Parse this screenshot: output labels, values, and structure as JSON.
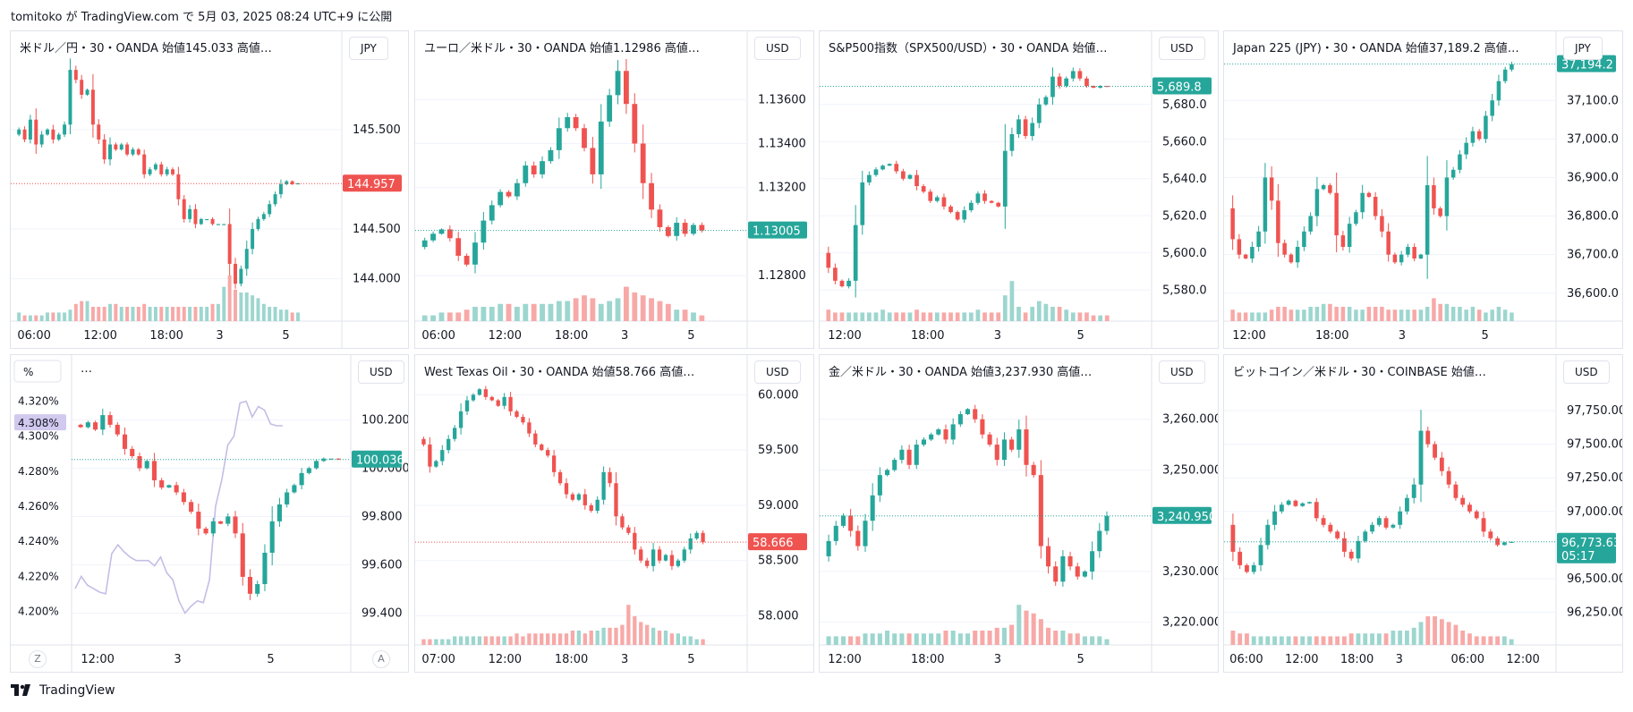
{
  "header": {
    "attribution": "tomitoko が TradingView.com で 5月 03, 2025 08:24 UTC+9 に公開"
  },
  "footer": {
    "brand": "TradingView"
  },
  "colors": {
    "up": "#26a69a",
    "down": "#ef5350",
    "up_vol": "#9cd6cf",
    "down_vol": "#f7a9a7",
    "grid": "#f0f3fa",
    "axis_text": "#131722",
    "secondary_line": "#c4bde6"
  },
  "panels": [
    {
      "id": "usdjpy",
      "title": "米ドル／円・30・OANDA 始値145.033 高値…",
      "title_value_color": "#ef5350",
      "currency": "JPY",
      "y_ticks": [
        "145.500",
        "144.500",
        "144.000"
      ],
      "x_ticks": [
        "06:00",
        "12:00",
        "18:00",
        "3",
        "5"
      ],
      "last_price": "144.957",
      "last_color": "#ef5350"
    },
    {
      "id": "eurusd",
      "title": "ユーロ／米ドル・30・OANDA 始値1.12986 高値…",
      "title_value_color": "#26a69a",
      "currency": "USD",
      "y_ticks": [
        "1.13600",
        "1.13400",
        "1.13200",
        "1.12800"
      ],
      "x_ticks": [
        "06:00",
        "12:00",
        "18:00",
        "3",
        "5"
      ],
      "last_price": "1.13005",
      "last_color": "#26a69a"
    },
    {
      "id": "spx",
      "title": "S&P500指数（SPX500/USD）・30・OANDA 始値…",
      "title_value_color": "#26a69a",
      "currency": "USD",
      "y_ticks": [
        "5,680.0",
        "5,660.0",
        "5,640.0",
        "5,620.0",
        "5,600.0",
        "5,580.0"
      ],
      "x_ticks": [
        "12:00",
        "18:00",
        "3",
        "5"
      ],
      "last_price": "5,689.8",
      "last_color": "#26a69a"
    },
    {
      "id": "jp225",
      "title": "Japan 225 (JPY)・30・OANDA 始値37,189.2 高値…",
      "title_value_color": "#26a69a",
      "currency": "JPY",
      "y_ticks": [
        "37,100.0",
        "37,000.0",
        "36,900.0",
        "36,800.0",
        "36,700.0",
        "36,600.0"
      ],
      "x_ticks": [
        "12:00",
        "18:00",
        "3",
        "5"
      ],
      "last_price": "37,194.2",
      "last_color": "#26a69a"
    },
    {
      "id": "dxy",
      "title": "…",
      "title_value_color": "#131722",
      "currency": "USD",
      "left_unit": "%",
      "y_ticks": [
        "100.200",
        "100.000",
        "99.800",
        "99.600",
        "99.400"
      ],
      "left_ticks": [
        "4.320%",
        "4.300%",
        "4.280%",
        "4.260%",
        "4.240%",
        "4.220%",
        "4.200%"
      ],
      "left_last": "4.308%",
      "x_ticks": [
        "12:00",
        "3",
        "5"
      ],
      "last_price": "100.036",
      "last_color": "#26a69a",
      "corner_left": "Z",
      "corner_right": "A"
    },
    {
      "id": "wti",
      "title": "West Texas Oil・30・OANDA 始値58.766 高値…",
      "title_value_color": "#ef5350",
      "currency": "USD",
      "y_ticks": [
        "60.000",
        "59.500",
        "59.000",
        "58.500",
        "58.000"
      ],
      "x_ticks": [
        "07:00",
        "12:00",
        "18:00",
        "3",
        "5"
      ],
      "last_price": "58.666",
      "last_color": "#ef5350"
    },
    {
      "id": "xauusd",
      "title": "金／米ドル・30・OANDA 始値3,237.930 高値…",
      "title_value_color": "#26a69a",
      "currency": "USD",
      "y_ticks": [
        "3,260.000",
        "3,250.000",
        "3,230.000",
        "3,220.000"
      ],
      "x_ticks": [
        "12:00",
        "18:00",
        "3",
        "5"
      ],
      "last_price": "3,240.950",
      "last_color": "#26a69a"
    },
    {
      "id": "btcusd",
      "title": "ビットコイン／米ドル・30・COINBASE 始値…",
      "title_value_color": "#131722",
      "currency": "USD",
      "y_ticks": [
        "97,750.00",
        "97,500.00",
        "97,250.00",
        "97,000.00",
        "96,500.00",
        "96,250.00"
      ],
      "x_ticks": [
        "06:00",
        "12:00",
        "18:00",
        "3",
        "06:00",
        "12:00"
      ],
      "last_price": "96,773.63",
      "last_sub": "05:17",
      "last_color": "#26a69a"
    }
  ],
  "chart_data": [
    {
      "type": "candlestick",
      "symbol": "USDJPY",
      "open": 145.033,
      "last": 144.957,
      "ylim": [
        143.7,
        146.2
      ],
      "path": [
        145.45,
        145.5,
        145.4,
        145.6,
        145.35,
        145.45,
        145.5,
        145.4,
        145.45,
        145.55,
        146.1,
        146.0,
        145.85,
        145.9,
        145.55,
        145.4,
        145.2,
        145.35,
        145.3,
        145.35,
        145.25,
        145.3,
        145.25,
        145.05,
        145.1,
        145.15,
        145.05,
        145.1,
        145.05,
        144.8,
        144.6,
        144.7,
        144.55,
        144.6,
        144.6,
        144.55,
        144.55,
        144.55,
        144.15,
        143.95,
        144.1,
        144.3,
        144.5,
        144.6,
        144.65,
        144.75,
        144.85,
        144.95,
        144.98,
        144.95,
        144.96
      ],
      "volume": [
        3,
        2,
        2,
        2,
        2,
        3,
        3,
        3,
        3,
        4,
        6,
        7,
        7,
        5,
        5,
        5,
        6,
        6,
        5,
        5,
        5,
        5,
        6,
        5,
        5,
        5,
        5,
        5,
        5,
        5,
        5,
        5,
        5,
        5,
        6,
        6,
        12,
        16,
        11,
        10,
        10,
        9,
        8,
        6,
        5,
        5,
        4,
        4,
        3,
        3,
        2
      ]
    },
    {
      "type": "candlestick",
      "symbol": "EURUSD",
      "open": 1.12986,
      "last": 1.13005,
      "ylim": [
        1.1265,
        1.1378
      ],
      "path": [
        1.1293,
        1.1296,
        1.1299,
        1.1301,
        1.1297,
        1.1289,
        1.1285,
        1.1295,
        1.1305,
        1.1312,
        1.1318,
        1.1316,
        1.1322,
        1.133,
        1.1326,
        1.1332,
        1.1337,
        1.1347,
        1.1352,
        1.1347,
        1.1338,
        1.1326,
        1.135,
        1.1362,
        1.1373,
        1.1358,
        1.134,
        1.1322,
        1.131,
        1.1302,
        1.1298,
        1.1304,
        1.1299,
        1.1303,
        1.13005
      ],
      "volume": [
        2,
        2,
        3,
        3,
        3,
        4,
        5,
        5,
        5,
        6,
        6,
        5,
        6,
        6,
        6,
        6,
        7,
        7,
        8,
        9,
        8,
        6,
        7,
        8,
        12,
        10,
        9,
        8,
        7,
        6,
        4,
        4,
        3,
        2,
        2
      ]
    },
    {
      "type": "candlestick",
      "symbol": "SPX500USD",
      "last": 5689.8,
      "ylim": [
        5570,
        5704
      ],
      "path": [
        5600,
        5592,
        5585,
        5582,
        5585,
        5615,
        5638,
        5642,
        5645,
        5647,
        5648,
        5644,
        5640,
        5642,
        5636,
        5633,
        5628,
        5630,
        5625,
        5622,
        5618,
        5623,
        5627,
        5632,
        5628,
        5627,
        5625,
        5655,
        5664,
        5672,
        5663,
        5670,
        5680,
        5684,
        5695,
        5690,
        5694,
        5698,
        5694,
        5690,
        5689,
        5690,
        5689.8
      ],
      "volume": [
        4,
        3,
        3,
        3,
        3,
        3,
        3,
        3,
        4,
        3,
        3,
        3,
        3,
        4,
        3,
        3,
        3,
        3,
        3,
        3,
        3,
        3,
        4,
        3,
        3,
        3,
        9,
        14,
        5,
        3,
        5,
        7,
        6,
        5,
        5,
        4,
        3,
        3,
        3,
        2,
        2,
        2,
        2
      ]
    },
    {
      "type": "candlestick",
      "symbol": "JP225",
      "open": 37189.2,
      "last": 37194.2,
      "ylim": [
        36560,
        37205
      ],
      "path": [
        36820,
        36740,
        36700,
        36690,
        36720,
        36760,
        36900,
        36840,
        36730,
        36700,
        36680,
        36720,
        36760,
        36800,
        36870,
        36880,
        36860,
        36750,
        36720,
        36780,
        36810,
        36860,
        36850,
        36800,
        36760,
        36700,
        36680,
        36700,
        36720,
        36690,
        36700,
        36880,
        36820,
        36800,
        36900,
        36920,
        36960,
        36990,
        37020,
        37000,
        37060,
        37100,
        37150,
        37180,
        37194
      ],
      "volume": [
        4,
        3,
        3,
        3,
        3,
        3,
        4,
        5,
        5,
        4,
        4,
        4,
        5,
        5,
        6,
        6,
        5,
        5,
        5,
        4,
        4,
        5,
        5,
        5,
        4,
        4,
        4,
        4,
        4,
        4,
        5,
        8,
        6,
        6,
        5,
        5,
        4,
        5,
        4,
        3,
        4,
        5,
        4,
        3,
        3
      ]
    },
    {
      "type": "candlestick",
      "symbol": "DXY",
      "last": 100.036,
      "ylim": [
        99.32,
        100.35
      ],
      "secondary_series": {
        "name": "",
        "unit": "%",
        "ylim": [
          4.188,
          4.33
        ],
        "values": [
          4.213,
          4.22,
          4.215,
          4.213,
          4.211,
          4.21,
          4.233,
          4.238,
          4.234,
          4.231,
          4.229,
          4.229,
          4.229,
          4.226,
          4.231,
          4.222,
          4.218,
          4.206,
          4.199,
          4.203,
          4.206,
          4.205,
          4.218,
          4.26,
          4.275,
          4.295,
          4.3,
          4.319,
          4.32,
          4.311,
          4.317,
          4.315,
          4.307,
          4.306,
          4.306
        ],
        "last": 4.308
      },
      "path": [
        100.18,
        100.17,
        100.19,
        100.16,
        100.22,
        100.18,
        100.14,
        100.08,
        100.05,
        100.0,
        100.03,
        99.95,
        99.92,
        99.93,
        99.9,
        99.86,
        99.82,
        99.75,
        99.73,
        99.78,
        99.77,
        99.8,
        99.73,
        99.55,
        99.48,
        99.52,
        99.65,
        99.78,
        99.85,
        99.9,
        99.93,
        99.98,
        100.0,
        100.03,
        100.04,
        100.04,
        100.036
      ]
    },
    {
      "type": "candlestick",
      "symbol": "WTIUSD",
      "open": 58.766,
      "last": 58.666,
      "ylim": [
        57.85,
        60.1
      ],
      "path": [
        59.6,
        59.55,
        59.35,
        59.4,
        59.5,
        59.6,
        59.7,
        59.85,
        59.95,
        60.0,
        60.05,
        59.98,
        59.95,
        59.9,
        59.98,
        59.85,
        59.8,
        59.75,
        59.65,
        59.55,
        59.5,
        59.45,
        59.3,
        59.2,
        59.1,
        59.05,
        59.1,
        59.0,
        58.95,
        59.05,
        59.3,
        59.2,
        58.9,
        58.8,
        58.75,
        58.6,
        58.5,
        58.45,
        58.6,
        58.5,
        58.55,
        58.45,
        58.5,
        58.6,
        58.7,
        58.75,
        58.666
      ],
      "volume": [
        2,
        2,
        2,
        2,
        2,
        3,
        3,
        3,
        3,
        3,
        3,
        3,
        3,
        3,
        3,
        4,
        3,
        4,
        4,
        4,
        4,
        4,
        4,
        4,
        5,
        5,
        4,
        5,
        5,
        6,
        6,
        6,
        7,
        14,
        10,
        8,
        7,
        6,
        5,
        5,
        4,
        4,
        3,
        3,
        2,
        2,
        2
      ]
    },
    {
      "type": "candlestick",
      "symbol": "XAUUSD",
      "open": 3237.93,
      "last": 3240.95,
      "ylim": [
        3218,
        3267
      ],
      "path": [
        3233,
        3236,
        3239,
        3241,
        3238,
        3235,
        3240,
        3245,
        3249,
        3250,
        3252,
        3254,
        3251,
        3255,
        3256,
        3257,
        3258,
        3256,
        3259,
        3261,
        3262,
        3260,
        3257,
        3255,
        3252,
        3256,
        3254,
        3258,
        3251,
        3249,
        3235,
        3231,
        3228,
        3233,
        3231,
        3229,
        3230,
        3234,
        3238,
        3240.95
      ],
      "volume": [
        3,
        3,
        3,
        3,
        3,
        4,
        4,
        4,
        5,
        4,
        4,
        4,
        4,
        4,
        4,
        4,
        5,
        5,
        4,
        4,
        5,
        5,
        5,
        6,
        6,
        7,
        14,
        12,
        11,
        9,
        6,
        5,
        5,
        4,
        4,
        3,
        3,
        3,
        2,
        2
      ]
    },
    {
      "type": "candlestick",
      "symbol": "BTCUSD",
      "last": 96773.63,
      "ylim": [
        96100,
        97950
      ],
      "path": [
        96900,
        96700,
        96600,
        96550,
        96600,
        96750,
        96900,
        97000,
        97050,
        97080,
        97040,
        97060,
        97070,
        96950,
        96900,
        96850,
        96800,
        96700,
        96650,
        96780,
        96850,
        96900,
        96950,
        96880,
        96900,
        97000,
        97100,
        97200,
        97600,
        97500,
        97400,
        97300,
        97200,
        97100,
        97050,
        97000,
        96950,
        96850,
        96800,
        96750,
        96770,
        96773.63
      ],
      "volume": [
        5,
        4,
        4,
        3,
        3,
        3,
        3,
        3,
        3,
        3,
        3,
        3,
        3,
        3,
        3,
        3,
        3,
        4,
        4,
        4,
        4,
        4,
        4,
        5,
        5,
        5,
        6,
        8,
        10,
        10,
        9,
        8,
        7,
        5,
        4,
        3,
        3,
        3,
        3,
        3,
        2,
        2
      ]
    }
  ]
}
